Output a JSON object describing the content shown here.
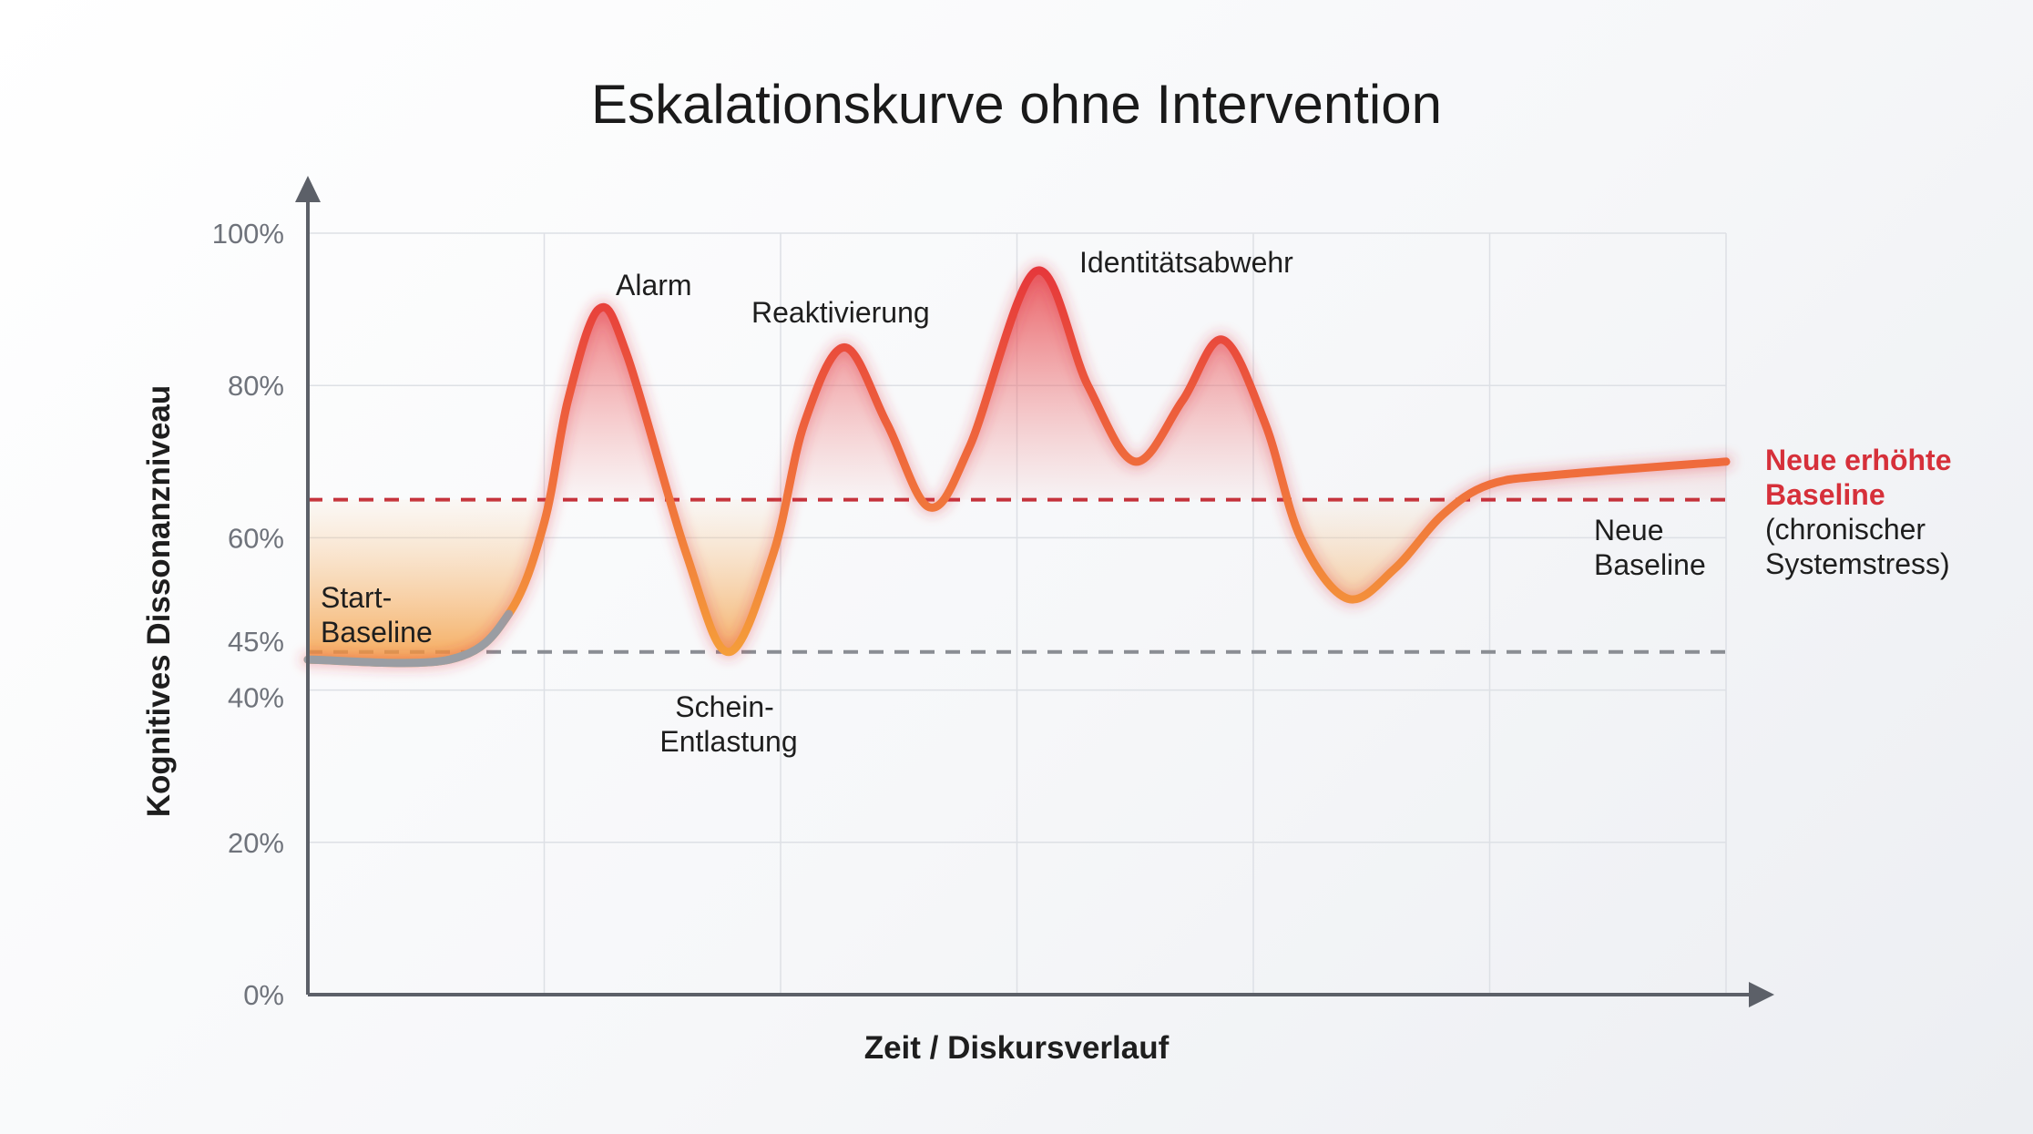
{
  "chart_data": {
    "type": "line",
    "title": "Eskalationskurve ohne Intervention",
    "xlabel": "Zeit / Diskursverlauf",
    "ylabel": "Kognitives Dissonanzniveau",
    "ylim": [
      0,
      100
    ],
    "xlim": [
      0,
      6
    ],
    "y_ticks": [
      "0%",
      "20%",
      "40%",
      "45%",
      "60%",
      "80%",
      "100%"
    ],
    "y_tick_values": [
      0,
      20,
      40,
      45,
      60,
      80,
      100
    ],
    "grid": true,
    "series": [
      {
        "points": [
          [
            0,
            44
          ],
          [
            0.6,
            44
          ],
          [
            0.85,
            50
          ],
          [
            1.0,
            62
          ],
          [
            1.1,
            78
          ],
          [
            1.23,
            90
          ],
          [
            1.35,
            84
          ],
          [
            1.6,
            58
          ],
          [
            1.78,
            45
          ],
          [
            1.97,
            58
          ],
          [
            2.1,
            75
          ],
          [
            2.27,
            85
          ],
          [
            2.45,
            75
          ],
          [
            2.63,
            64
          ],
          [
            2.8,
            72
          ],
          [
            3.08,
            95
          ],
          [
            3.3,
            80
          ],
          [
            3.5,
            70
          ],
          [
            3.7,
            78
          ],
          [
            3.87,
            86
          ],
          [
            4.05,
            75
          ],
          [
            4.2,
            60
          ],
          [
            4.4,
            52
          ],
          [
            4.6,
            56
          ],
          [
            4.8,
            63
          ],
          [
            5.0,
            67
          ],
          [
            5.3,
            68.3
          ],
          [
            6.0,
            70
          ]
        ]
      }
    ],
    "reference_lines": [
      {
        "value": 45,
        "style": "dashed",
        "color": "#8a8d93"
      },
      {
        "value": 65,
        "style": "dashed",
        "color": "#c4303a"
      }
    ],
    "annotations": {
      "start": [
        "Start-",
        "Baseline"
      ],
      "alarm": "Alarm",
      "reaktivierung": "Reaktivierung",
      "identitaet": "Identitätsabwehr",
      "schein": [
        "Schein-",
        "Entlastung"
      ],
      "neue_baseline": [
        "Neue",
        "Baseline"
      ],
      "neue_erhoehte": [
        "Neue erhöhte",
        "Baseline"
      ],
      "chronisch": [
        "(chronischer",
        "Systemstress)"
      ]
    },
    "colors": {
      "baseline_gray": "#9a9da3",
      "orange": "#f4963a",
      "red": "#e5343b",
      "red_label": "#d6303a",
      "axis": "#5c6068",
      "grid": "#dde0e5"
    }
  }
}
